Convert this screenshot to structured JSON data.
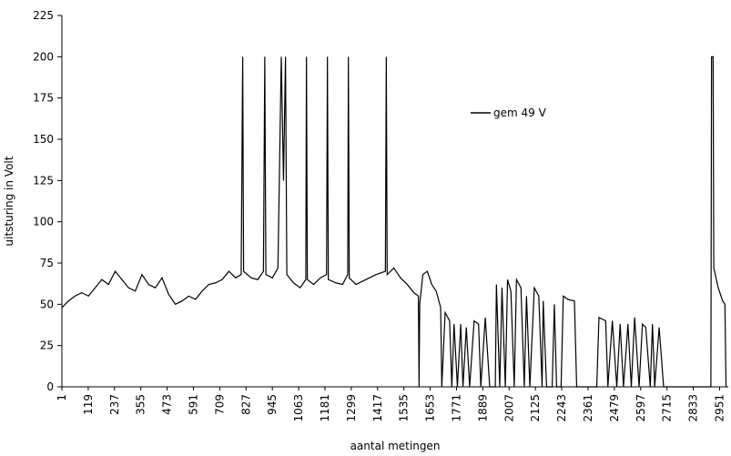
{
  "chart_data": {
    "type": "line",
    "y_label": "uitsturing in Volt",
    "x_label": "aantal metingen",
    "legend": "upper right",
    "grid": false,
    "xlim": [
      1,
      2990
    ],
    "ylim": [
      0,
      225
    ],
    "yticks": [
      0,
      25,
      50,
      75,
      100,
      125,
      150,
      175,
      200,
      225
    ],
    "xticks": [
      1,
      119,
      237,
      355,
      473,
      591,
      709,
      827,
      945,
      1063,
      1181,
      1299,
      1417,
      1535,
      1653,
      1771,
      1889,
      2007,
      2125,
      2243,
      2361,
      2479,
      2597,
      2715,
      2833,
      2951
    ],
    "x": [
      1,
      30,
      60,
      90,
      120,
      150,
      180,
      210,
      240,
      270,
      300,
      330,
      360,
      390,
      420,
      450,
      480,
      510,
      540,
      570,
      600,
      630,
      660,
      690,
      720,
      750,
      780,
      805,
      812,
      816,
      850,
      880,
      905,
      911,
      916,
      945,
      970,
      985,
      995,
      1004,
      1010,
      1040,
      1070,
      1095,
      1098,
      1102,
      1130,
      1160,
      1188,
      1192,
      1196,
      1230,
      1260,
      1283,
      1286,
      1290,
      1320,
      1350,
      1380,
      1410,
      1452,
      1456,
      1460,
      1490,
      1520,
      1550,
      1580,
      1600,
      1603,
      1606,
      1620,
      1640,
      1660,
      1680,
      1700,
      1705,
      1720,
      1740,
      1750,
      1760,
      1775,
      1790,
      1800,
      1815,
      1830,
      1850,
      1870,
      1880,
      1900,
      1920,
      1945,
      1950,
      1965,
      1975,
      1990,
      2000,
      2015,
      2030,
      2040,
      2060,
      2075,
      2085,
      2100,
      2120,
      2140,
      2155,
      2160,
      2175,
      2200,
      2210,
      2220,
      2240,
      2250,
      2270,
      2300,
      2310,
      2400,
      2410,
      2440,
      2450,
      2470,
      2490,
      2505,
      2520,
      2540,
      2555,
      2570,
      2590,
      2605,
      2620,
      2640,
      2650,
      2660,
      2680,
      2700,
      2850,
      2912,
      2915,
      2922,
      2925,
      2945,
      2965,
      2975,
      2980
    ],
    "series": [
      {
        "name": "gem 49 V",
        "color": "#000000",
        "values": [
          48,
          52,
          55,
          57,
          55,
          60,
          65,
          62,
          70,
          65,
          60,
          58,
          68,
          62,
          60,
          66,
          56,
          50,
          52,
          55,
          53,
          58,
          62,
          63,
          65,
          70,
          66,
          68,
          200,
          70,
          66,
          65,
          70,
          200,
          68,
          66,
          72,
          200,
          125,
          200,
          68,
          63,
          60,
          65,
          200,
          65,
          62,
          66,
          68,
          200,
          65,
          63,
          62,
          68,
          200,
          66,
          62,
          64,
          66,
          68,
          70,
          200,
          68,
          72,
          66,
          62,
          57,
          55,
          0,
          50,
          68,
          70,
          62,
          58,
          48,
          0,
          45,
          40,
          0,
          38,
          0,
          38,
          0,
          36,
          0,
          40,
          38,
          0,
          42,
          0,
          0,
          62,
          0,
          60,
          0,
          65,
          58,
          0,
          65,
          60,
          0,
          55,
          0,
          60,
          55,
          0,
          52,
          0,
          0,
          50,
          0,
          0,
          55,
          53,
          52,
          0,
          0,
          42,
          40,
          0,
          40,
          0,
          38,
          0,
          38,
          0,
          42,
          0,
          38,
          36,
          0,
          38,
          0,
          36,
          0,
          0,
          0,
          200,
          200,
          72,
          60,
          52,
          50,
          0
        ]
      }
    ]
  }
}
